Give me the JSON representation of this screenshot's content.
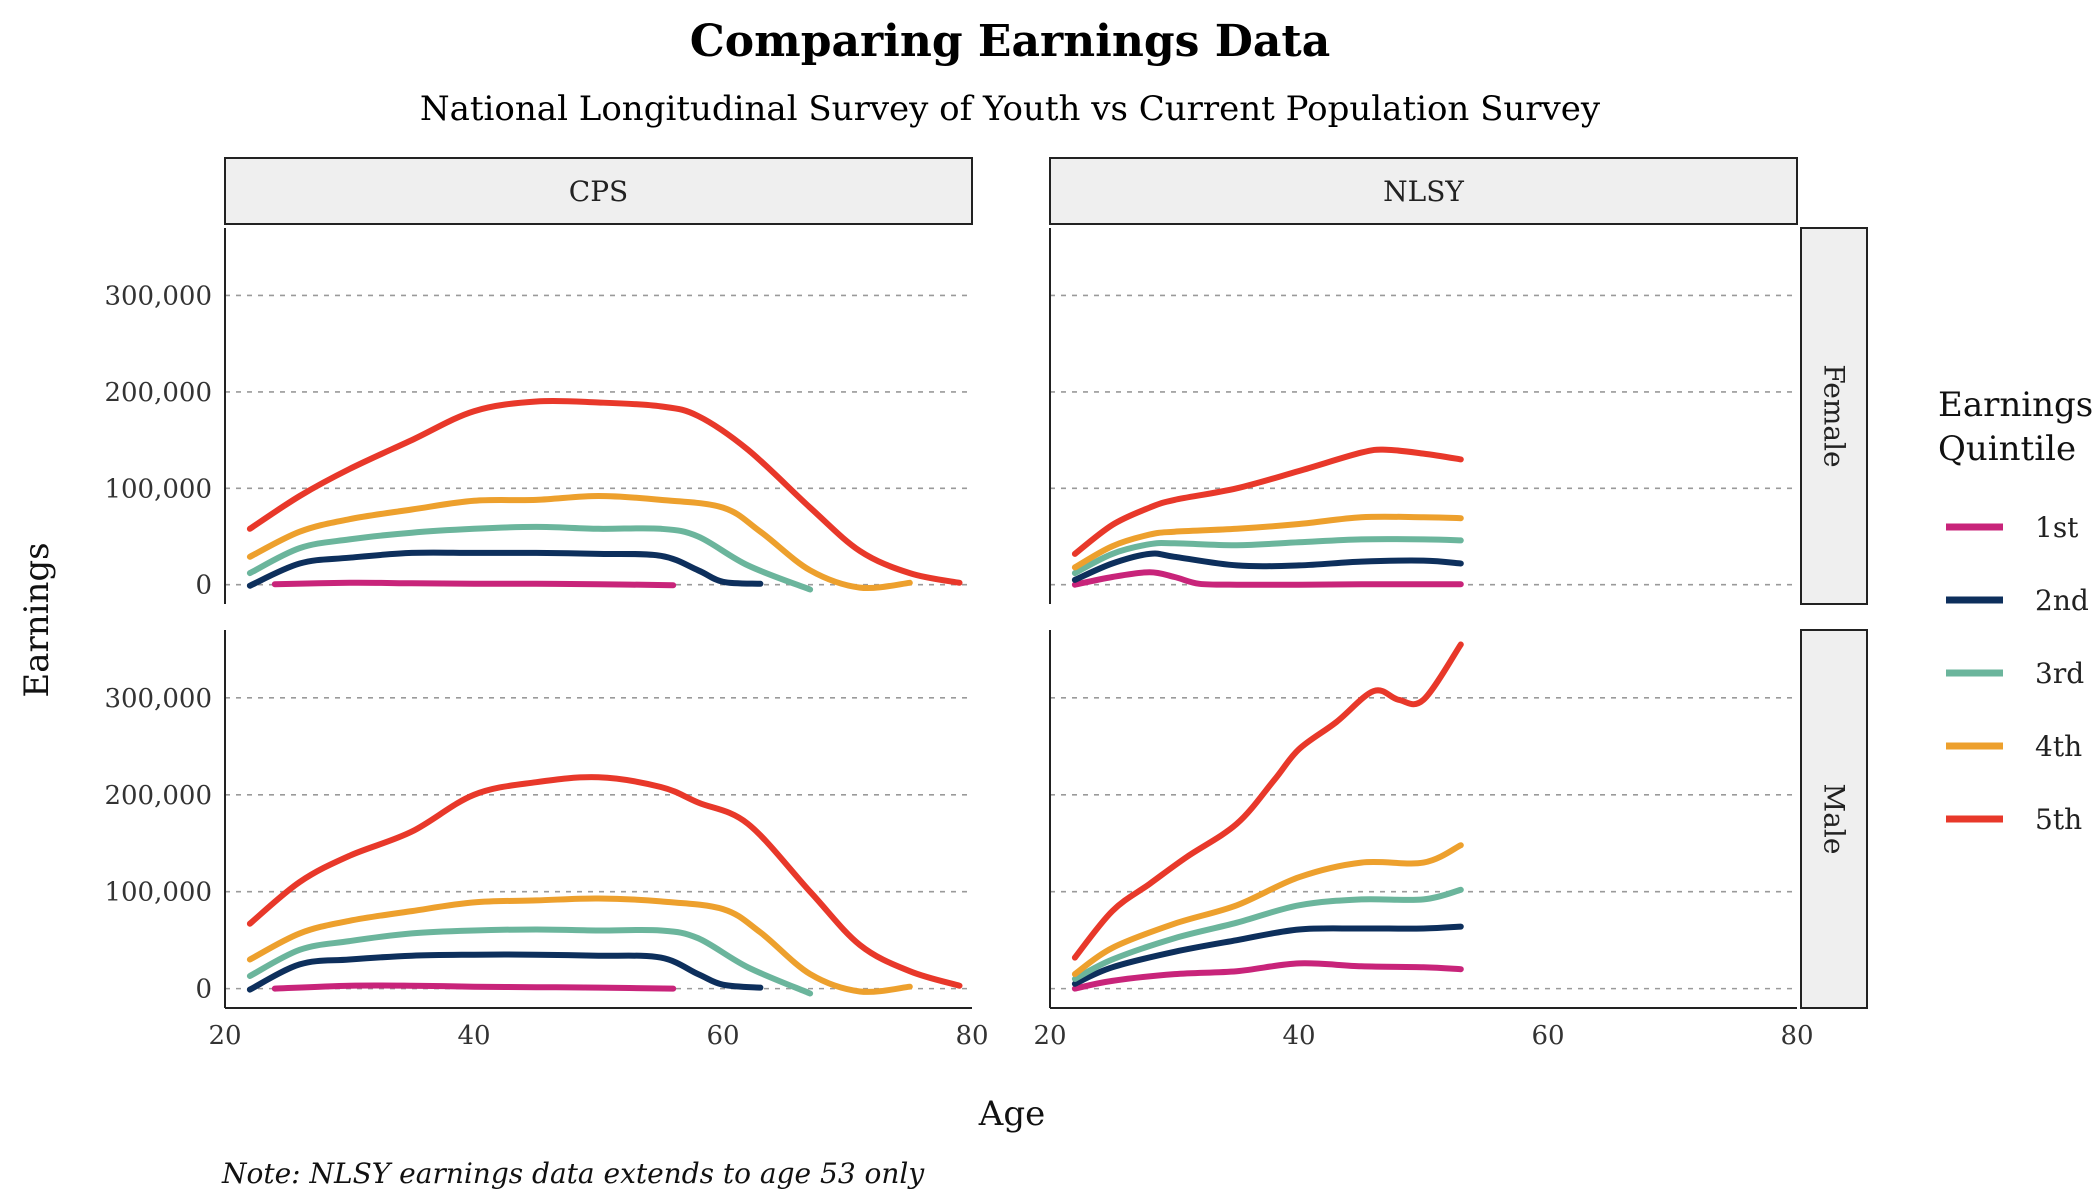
{
  "chart_data": {
    "type": "line",
    "title": "Comparing Earnings Data",
    "subtitle": "National Longitudinal Survey of Youth vs Current Population Survey",
    "caption": "Note: NLSY earnings data extends to age 53 only",
    "xlabel": "Age",
    "ylabel": "Earnings",
    "xlim": [
      20,
      80
    ],
    "ylim": [
      -20000,
      370000
    ],
    "x_ticks": [
      20,
      40,
      60,
      80
    ],
    "x_tick_labels": [
      "20",
      "40",
      "60",
      "80"
    ],
    "y_ticks": [
      0,
      100000,
      200000,
      300000
    ],
    "y_tick_labels": [
      "0",
      "100,000",
      "200,000",
      "300,000"
    ],
    "grid": "horizontal dashed",
    "legend": {
      "title_lines": [
        "Earnings",
        "Quintile"
      ],
      "placement": "right",
      "entries": [
        {
          "label": "1st",
          "color": "#C8247A"
        },
        {
          "label": "2nd",
          "color": "#0D2F5C"
        },
        {
          "label": "3rd",
          "color": "#6BB59C"
        },
        {
          "label": "4th",
          "color": "#EDA02D"
        },
        {
          "label": "5th",
          "color": "#E8382A"
        }
      ]
    },
    "col_facets": [
      "CPS",
      "NLSY"
    ],
    "row_facets": [
      "Female",
      "Male"
    ],
    "panels": [
      {
        "col": "CPS",
        "row": "Female",
        "series": [
          {
            "quintile": "1st",
            "x": [
              24,
              30,
              35,
              40,
              45,
              50,
              56
            ],
            "y": [
              500,
              2000,
              1500,
              1000,
              1000,
              500,
              -500
            ]
          },
          {
            "quintile": "2nd",
            "x": [
              22,
              26,
              30,
              35,
              40,
              45,
              50,
              55,
              58,
              60,
              63
            ],
            "y": [
              -1000,
              22000,
              28000,
              33000,
              33000,
              33000,
              32000,
              30000,
              15000,
              3000,
              1000
            ]
          },
          {
            "quintile": "3rd",
            "x": [
              22,
              26,
              30,
              35,
              40,
              45,
              50,
              55,
              58,
              62,
              67
            ],
            "y": [
              12000,
              38000,
              47000,
              54000,
              58000,
              60000,
              58000,
              58000,
              50000,
              20000,
              -5000
            ]
          },
          {
            "quintile": "4th",
            "x": [
              22,
              26,
              30,
              35,
              40,
              45,
              50,
              55,
              60,
              63,
              67,
              71,
              75
            ],
            "y": [
              29000,
              55000,
              68000,
              78000,
              87000,
              88000,
              92000,
              88000,
              80000,
              55000,
              15000,
              -3000,
              2000
            ]
          },
          {
            "quintile": "5th",
            "x": [
              22,
              26,
              30,
              35,
              40,
              45,
              50,
              55,
              58,
              62,
              67,
              71,
              75,
              79
            ],
            "y": [
              58000,
              92000,
              120000,
              150000,
              180000,
              190000,
              189000,
              185000,
              175000,
              140000,
              80000,
              35000,
              12000,
              2000
            ]
          }
        ]
      },
      {
        "col": "NLSY",
        "row": "Female",
        "series": [
          {
            "quintile": "1st",
            "x": [
              22,
              25,
              28,
              30,
              32,
              35,
              40,
              45,
              50,
              53
            ],
            "y": [
              0,
              8000,
              13000,
              8000,
              1000,
              0,
              0,
              500,
              500,
              500
            ]
          },
          {
            "quintile": "2nd",
            "x": [
              22,
              25,
              28,
              30,
              35,
              40,
              45,
              50,
              53
            ],
            "y": [
              5000,
              22000,
              32000,
              29000,
              20000,
              20000,
              24000,
              25000,
              22000
            ]
          },
          {
            "quintile": "3rd",
            "x": [
              22,
              25,
              28,
              30,
              35,
              40,
              45,
              50,
              53
            ],
            "y": [
              12000,
              32000,
              42000,
              43000,
              41000,
              44000,
              47000,
              47000,
              46000
            ]
          },
          {
            "quintile": "4th",
            "x": [
              22,
              25,
              28,
              30,
              35,
              40,
              45,
              50,
              53
            ],
            "y": [
              18000,
              40000,
              52000,
              55000,
              58000,
              63000,
              70000,
              70000,
              69000
            ]
          },
          {
            "quintile": "5th",
            "x": [
              22,
              25,
              28,
              30,
              35,
              40,
              45,
              47,
              50,
              53
            ],
            "y": [
              32000,
              62000,
              80000,
              88000,
              100000,
              118000,
              137000,
              140000,
              136000,
              130000
            ]
          }
        ]
      },
      {
        "col": "CPS",
        "row": "Male",
        "series": [
          {
            "quintile": "1st",
            "x": [
              24,
              30,
              35,
              40,
              45,
              50,
              56
            ],
            "y": [
              0,
              3000,
              3000,
              2000,
              1500,
              1000,
              0
            ]
          },
          {
            "quintile": "2nd",
            "x": [
              22,
              26,
              30,
              35,
              40,
              45,
              50,
              55,
              58,
              60,
              63
            ],
            "y": [
              -1000,
              25000,
              30000,
              34000,
              35000,
              35000,
              34000,
              32000,
              15000,
              4000,
              1000
            ]
          },
          {
            "quintile": "3rd",
            "x": [
              22,
              26,
              30,
              35,
              40,
              45,
              50,
              55,
              58,
              62,
              67
            ],
            "y": [
              13000,
              40000,
              49000,
              57000,
              60000,
              61000,
              60000,
              60000,
              52000,
              22000,
              -5000
            ]
          },
          {
            "quintile": "4th",
            "x": [
              22,
              26,
              30,
              35,
              40,
              45,
              50,
              55,
              60,
              63,
              67,
              71,
              75
            ],
            "y": [
              30000,
              57000,
              70000,
              80000,
              89000,
              91000,
              93000,
              90000,
              82000,
              58000,
              15000,
              -3000,
              2000
            ]
          },
          {
            "quintile": "5th",
            "x": [
              22,
              26,
              30,
              35,
              40,
              45,
              50,
              55,
              58,
              62,
              67,
              71,
              75,
              79
            ],
            "y": [
              67000,
              110000,
              137000,
              162000,
              200000,
              213000,
              218000,
              208000,
              192000,
              170000,
              100000,
              45000,
              18000,
              3000
            ]
          }
        ]
      },
      {
        "col": "NLSY",
        "row": "Male",
        "series": [
          {
            "quintile": "1st",
            "x": [
              22,
              25,
              30,
              35,
              40,
              45,
              50,
              53
            ],
            "y": [
              0,
              8000,
              15000,
              18000,
              26000,
              23000,
              22000,
              20000
            ]
          },
          {
            "quintile": "2nd",
            "x": [
              22,
              25,
              30,
              35,
              40,
              45,
              50,
              53
            ],
            "y": [
              5000,
              22000,
              38000,
              50000,
              61000,
              62000,
              62000,
              64000
            ]
          },
          {
            "quintile": "3rd",
            "x": [
              22,
              25,
              30,
              35,
              40,
              45,
              50,
              53
            ],
            "y": [
              10000,
              30000,
              52000,
              68000,
              86000,
              92000,
              92000,
              102000
            ]
          },
          {
            "quintile": "4th",
            "x": [
              22,
              25,
              30,
              35,
              40,
              45,
              50,
              53
            ],
            "y": [
              15000,
              42000,
              67000,
              86000,
              115000,
              130000,
              130000,
              148000
            ]
          },
          {
            "quintile": "5th",
            "x": [
              22,
              25,
              28,
              31,
              35,
              38,
              40,
              43,
              46,
              48,
              50,
              53
            ],
            "y": [
              32000,
              80000,
              108000,
              136000,
              170000,
              215000,
              247000,
              275000,
              307000,
              298000,
              298000,
              355000
            ]
          }
        ]
      }
    ]
  }
}
